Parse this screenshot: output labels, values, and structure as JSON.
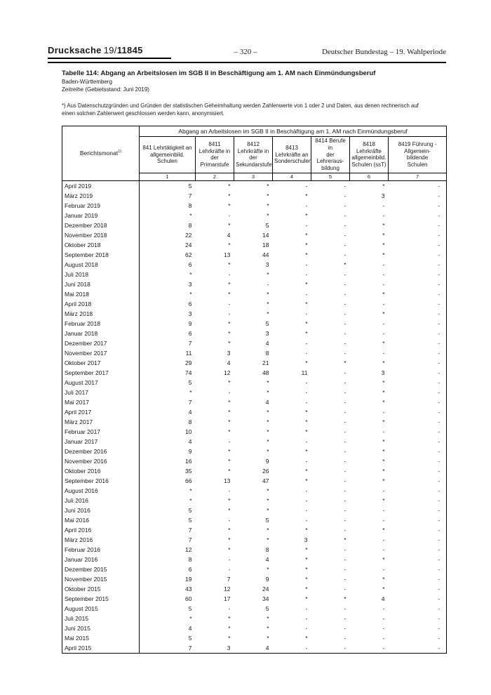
{
  "colors": {
    "background": "#ffffff",
    "text": "#1a1a1a",
    "border": "#000000"
  },
  "page_header": {
    "left": {
      "word": "Drucksache",
      "session": "19/",
      "number": "11845"
    },
    "center": "– 320 –",
    "right": "Deutscher Bundestag – 19. Wahlperiode"
  },
  "title_block": {
    "title": "Tabelle 114: Abgang an Arbeitslosen im SGB II in Beschäftigung am 1. AM nach Einmündungsberuf",
    "region": "Baden-Württemberg",
    "series": "Zeitreihe (Gebietsstand: Juni 2019)",
    "footnote_lines": [
      "*) Aus Datenschutzgründen und Gründen der statistischen Geheimhaltung werden Zahlenwerte von 1 oder 2 und Daten, aus denen rechnerisch auf",
      "einen solchen Zahlenwert geschlossen werden kann, anonymisiert."
    ]
  },
  "table": {
    "row_header": {
      "label": "Berichtsmonat",
      "footnote_mark": "1)"
    },
    "span_header": "Abgang an Arbeitslosen im SGB II in Beschäftigung am 1. AM nach Einmündungsberuf",
    "columns": [
      {
        "number": "1",
        "label_lines": [
          "841 Lehrtätigkeit an",
          "allgemeinbild.",
          "Schulen"
        ]
      },
      {
        "number": "2",
        "label_lines": [
          "8411",
          "Lehrkräfte in",
          "der",
          "Primarstufe"
        ]
      },
      {
        "number": "3",
        "label_lines": [
          "8412",
          "Lehrkräfte in",
          "der",
          "Sekundarstufe"
        ]
      },
      {
        "number": "4",
        "label_lines": [
          "8413",
          "Lehrkräfte an",
          "Sonderschulen"
        ]
      },
      {
        "number": "5",
        "label_lines": [
          "8414 Berufe in",
          "der Lehreraus-",
          "bildung"
        ]
      },
      {
        "number": "6",
        "label_lines": [
          "8418",
          "Lehrkräfte",
          "allgemeinbild.",
          "Schulen (ssT)"
        ]
      },
      {
        "number": "7",
        "label_lines": [
          "8419 Führung -",
          "Allgemein-",
          "bildende",
          "Schulen"
        ]
      }
    ],
    "rows": [
      {
        "month": "April 2019",
        "values": [
          "5",
          "*",
          "*",
          "-",
          "-",
          "*",
          "-"
        ]
      },
      {
        "month": "März 2019",
        "values": [
          "7",
          "*",
          "*",
          "*",
          "-",
          "3",
          "-"
        ]
      },
      {
        "month": "Februar 2019",
        "values": [
          "8",
          "*",
          "*",
          "-",
          "-",
          "-",
          "-"
        ]
      },
      {
        "month": "Januar 2019",
        "values": [
          "*",
          "-",
          "*",
          "*",
          "-",
          "-",
          "-"
        ]
      },
      {
        "month": "Dezember 2018",
        "values": [
          "8",
          "*",
          "5",
          "-",
          "-",
          "*",
          "-"
        ]
      },
      {
        "month": "November 2018",
        "values": [
          "22",
          "4",
          "14",
          "*",
          "-",
          "*",
          "-"
        ]
      },
      {
        "month": "Oktober 2018",
        "values": [
          "24",
          "*",
          "18",
          "*",
          "-",
          "*",
          "-"
        ]
      },
      {
        "month": "September 2018",
        "values": [
          "62",
          "13",
          "44",
          "*",
          "-",
          "*",
          "-"
        ]
      },
      {
        "month": "August 2018",
        "values": [
          "6",
          "*",
          "3",
          "-",
          "*",
          "-",
          "-"
        ]
      },
      {
        "month": "Juli 2018",
        "values": [
          "*",
          "-",
          "*",
          "-",
          "-",
          "-",
          "-"
        ]
      },
      {
        "month": "Juni 2018",
        "values": [
          "3",
          "*",
          "-",
          "*",
          "-",
          "-",
          "-"
        ]
      },
      {
        "month": "Mai 2018",
        "values": [
          "*",
          "*",
          "*",
          "-",
          "-",
          "*",
          "-"
        ]
      },
      {
        "month": "April 2018",
        "values": [
          "6",
          "-",
          "*",
          "*",
          "-",
          "-",
          "-"
        ]
      },
      {
        "month": "März 2018",
        "values": [
          "3",
          "-",
          "*",
          "-",
          "-",
          "*",
          "-"
        ]
      },
      {
        "month": "Februar 2018",
        "values": [
          "9",
          "*",
          "5",
          "*",
          "-",
          "-",
          "-"
        ]
      },
      {
        "month": "Januar 2018",
        "values": [
          "6",
          "*",
          "3",
          "*",
          "-",
          "-",
          "-"
        ]
      },
      {
        "month": "Dezember 2017",
        "values": [
          "7",
          "*",
          "4",
          "-",
          "-",
          "*",
          "-"
        ]
      },
      {
        "month": "November 2017",
        "values": [
          "11",
          "3",
          "8",
          "-",
          "-",
          "-",
          "-"
        ]
      },
      {
        "month": "Oktober 2017",
        "values": [
          "29",
          "4",
          "21",
          "*",
          "*",
          "*",
          "-"
        ]
      },
      {
        "month": "September 2017",
        "values": [
          "74",
          "12",
          "48",
          "11",
          "-",
          "3",
          "-"
        ]
      },
      {
        "month": "August 2017",
        "values": [
          "5",
          "*",
          "*",
          "-",
          "-",
          "*",
          "-"
        ]
      },
      {
        "month": "Juli 2017",
        "values": [
          "*",
          "-",
          "*",
          "-",
          "-",
          "*",
          "-"
        ]
      },
      {
        "month": "Mai 2017",
        "values": [
          "7",
          "*",
          "4",
          "-",
          "-",
          "*",
          "-"
        ]
      },
      {
        "month": "April 2017",
        "values": [
          "4",
          "*",
          "*",
          "*",
          "-",
          "-",
          "-"
        ]
      },
      {
        "month": "März 2017",
        "values": [
          "8",
          "*",
          "*",
          "*",
          "-",
          "*",
          "-"
        ]
      },
      {
        "month": "Februar 2017",
        "values": [
          "10",
          "*",
          "*",
          "*",
          "-",
          "-",
          "-"
        ]
      },
      {
        "month": "Januar 2017",
        "values": [
          "4",
          "-",
          "*",
          "-",
          "-",
          "*",
          "-"
        ]
      },
      {
        "month": "Dezember 2016",
        "values": [
          "9",
          "*",
          "*",
          "*",
          "-",
          "*",
          "-"
        ]
      },
      {
        "month": "November 2016",
        "values": [
          "16",
          "*",
          "9",
          "-",
          "-",
          "*",
          "-"
        ]
      },
      {
        "month": "Oktober 2016",
        "values": [
          "35",
          "*",
          "26",
          "*",
          "-",
          "*",
          "-"
        ]
      },
      {
        "month": "September 2016",
        "values": [
          "66",
          "13",
          "47",
          "*",
          "-",
          "*",
          "-"
        ]
      },
      {
        "month": "August 2016",
        "values": [
          "*",
          "-",
          "*",
          "-",
          "-",
          "-",
          "-"
        ]
      },
      {
        "month": "Juli 2016",
        "values": [
          "*",
          "*",
          "*",
          "-",
          "-",
          "*",
          "-"
        ]
      },
      {
        "month": "Juni 2016",
        "values": [
          "5",
          "*",
          "*",
          "-",
          "-",
          "-",
          "-"
        ]
      },
      {
        "month": "Mai 2016",
        "values": [
          "5",
          "-",
          "5",
          "-",
          "-",
          "-",
          "-"
        ]
      },
      {
        "month": "April 2016",
        "values": [
          "7",
          "*",
          "*",
          "*",
          "-",
          "*",
          "-"
        ]
      },
      {
        "month": "März 2016",
        "values": [
          "7",
          "*",
          "*",
          "3",
          "*",
          "-",
          "-"
        ]
      },
      {
        "month": "Februar 2016",
        "values": [
          "12",
          "*",
          "8",
          "*",
          "-",
          "-",
          "-"
        ]
      },
      {
        "month": "Januar 2016",
        "values": [
          "8",
          "-",
          "4",
          "*",
          "-",
          "*",
          "-"
        ]
      },
      {
        "month": "Dezember 2015",
        "values": [
          "6",
          "-",
          "*",
          "*",
          "-",
          "-",
          "-"
        ]
      },
      {
        "month": "November 2015",
        "values": [
          "19",
          "7",
          "9",
          "*",
          "-",
          "*",
          "-"
        ]
      },
      {
        "month": "Oktober 2015",
        "values": [
          "43",
          "12",
          "24",
          "*",
          "-",
          "*",
          "-"
        ]
      },
      {
        "month": "September 2015",
        "values": [
          "60",
          "17",
          "34",
          "*",
          "*",
          "4",
          "-"
        ]
      },
      {
        "month": "August 2015",
        "values": [
          "5",
          "-",
          "5",
          "-",
          "-",
          "-",
          "-"
        ]
      },
      {
        "month": "Juli 2015",
        "values": [
          "*",
          "*",
          "*",
          "-",
          "-",
          "-",
          "-"
        ]
      },
      {
        "month": "Juni 2015",
        "values": [
          "4",
          "*",
          "*",
          "-",
          "-",
          "-",
          "-"
        ]
      },
      {
        "month": "Mai 2015",
        "values": [
          "5",
          "*",
          "*",
          "*",
          "-",
          "-",
          "-"
        ]
      },
      {
        "month": "April 2015",
        "values": [
          "7",
          "3",
          "4",
          "-",
          "-",
          "-",
          "-"
        ]
      }
    ]
  }
}
